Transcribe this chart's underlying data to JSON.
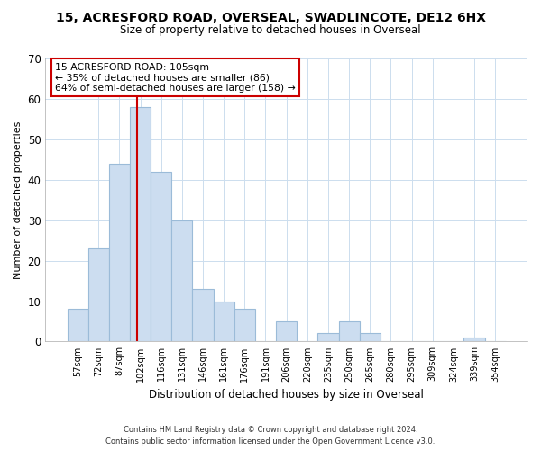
{
  "title": "15, ACRESFORD ROAD, OVERSEAL, SWADLINCOTE, DE12 6HX",
  "subtitle": "Size of property relative to detached houses in Overseal",
  "xlabel": "Distribution of detached houses by size in Overseal",
  "ylabel": "Number of detached properties",
  "bar_color": "#ccddf0",
  "bar_edge_color": "#9bbbd8",
  "categories": [
    "57sqm",
    "72sqm",
    "87sqm",
    "102sqm",
    "116sqm",
    "131sqm",
    "146sqm",
    "161sqm",
    "176sqm",
    "191sqm",
    "206sqm",
    "220sqm",
    "235sqm",
    "250sqm",
    "265sqm",
    "280sqm",
    "295sqm",
    "309sqm",
    "324sqm",
    "339sqm",
    "354sqm"
  ],
  "values": [
    8,
    23,
    44,
    58,
    42,
    30,
    13,
    10,
    8,
    0,
    5,
    0,
    2,
    5,
    2,
    0,
    0,
    0,
    0,
    1,
    0
  ],
  "ylim": [
    0,
    70
  ],
  "yticks": [
    0,
    10,
    20,
    30,
    40,
    50,
    60,
    70
  ],
  "property_line_index": 3,
  "property_line_color": "#cc0000",
  "annotation_text": "15 ACRESFORD ROAD: 105sqm\n← 35% of detached houses are smaller (86)\n64% of semi-detached houses are larger (158) →",
  "annotation_box_color": "#ffffff",
  "annotation_box_edge": "#cc0000",
  "footnote1": "Contains HM Land Registry data © Crown copyright and database right 2024.",
  "footnote2": "Contains public sector information licensed under the Open Government Licence v3.0.",
  "background_color": "#ffffff",
  "grid_color": "#ccddee"
}
